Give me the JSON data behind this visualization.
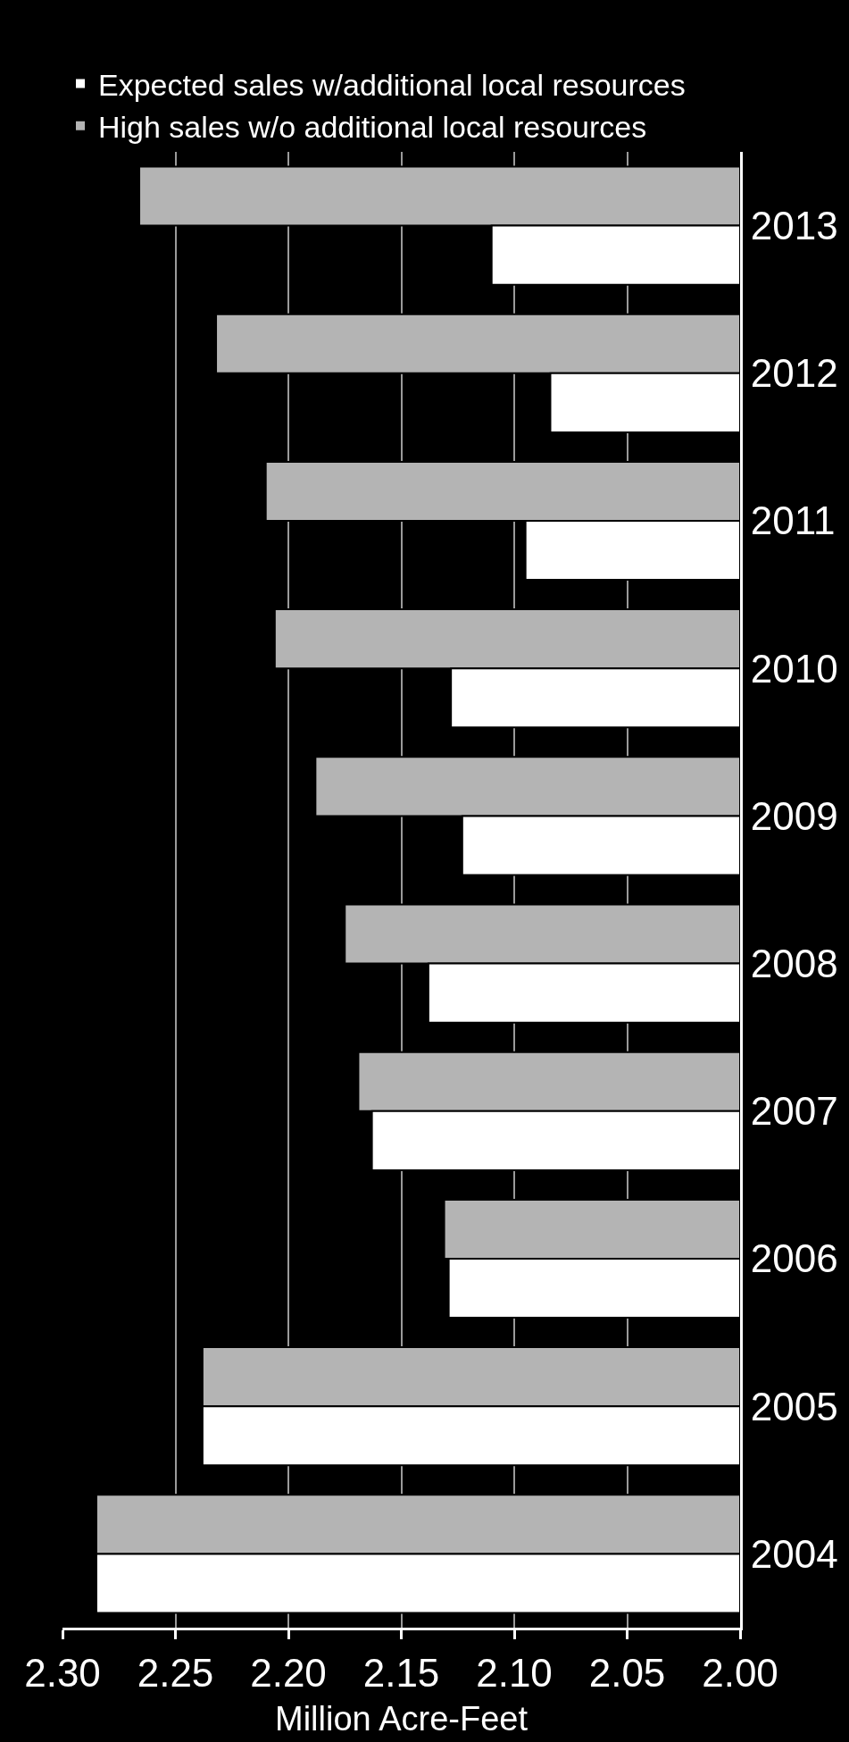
{
  "chart_data": {
    "type": "bar",
    "orientation": "horizontal",
    "xlabel": "Million Acre-Feet",
    "categories": [
      "2013",
      "2012",
      "2011",
      "2010",
      "2009",
      "2008",
      "2007",
      "2006",
      "2005",
      "2004"
    ],
    "series": [
      {
        "name": "High sales w/o additional local resources",
        "color": "#b4b4b4",
        "values": [
          2.266,
          2.232,
          2.21,
          2.206,
          2.188,
          2.175,
          2.169,
          2.131,
          2.238,
          2.285
        ]
      },
      {
        "name": "Expected sales w/additional local resources",
        "color": "#ffffff",
        "values": [
          2.11,
          2.084,
          2.095,
          2.128,
          2.123,
          2.138,
          2.163,
          2.129,
          2.238,
          2.285
        ]
      }
    ],
    "xlim": [
      2.3,
      2.0
    ],
    "xticks": [
      {
        "value": 2.3,
        "label": "2.30"
      },
      2.25,
      {
        "value": 2.2,
        "label": "2.20"
      },
      2.15,
      {
        "value": 2.1,
        "label": "2.10"
      },
      2.05,
      {
        "value": 2.0,
        "label": "2.00"
      }
    ],
    "grid": "x",
    "legend": "top"
  }
}
